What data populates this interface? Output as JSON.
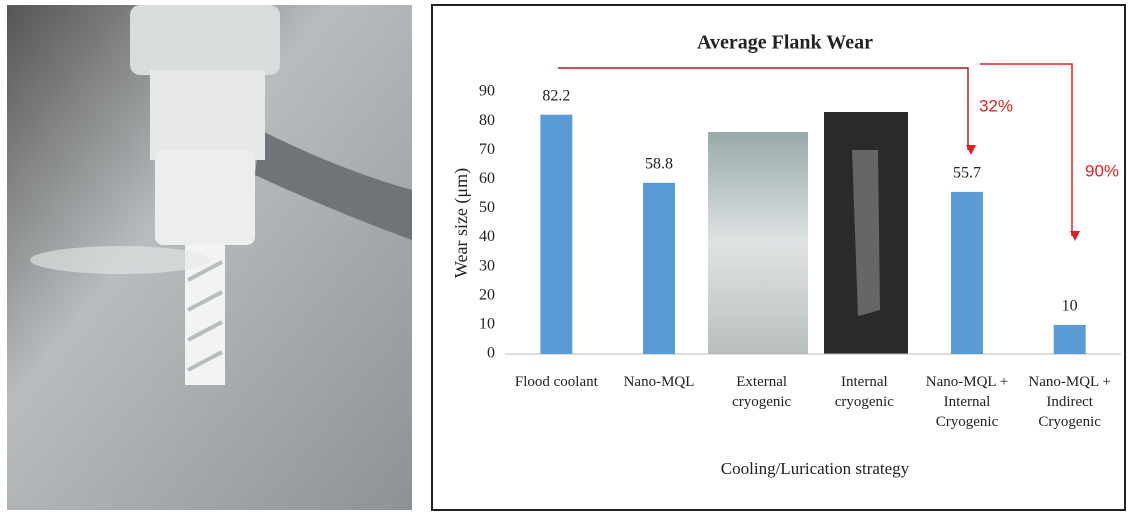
{
  "chart_data": {
    "type": "bar",
    "title": "Average Flank Wear",
    "categories": [
      "Flood coolant",
      "Nano-MQL",
      "External\ncryogenic",
      "Internal\ncryogenic",
      "Nano-MQL +\nInternal\nCryogenic",
      "Nano-MQL +\nIndirect\nCryogenic"
    ],
    "values": [
      82.2,
      58.8,
      null,
      null,
      55.7,
      10
    ],
    "color": "#5b9bd5",
    "y_label": "Wear size (μm)",
    "x_label": "Cooling/Lurication strategy",
    "ylim": [
      0,
      90
    ],
    "yticks": [
      0,
      10,
      20,
      30,
      40,
      50,
      60,
      70,
      80,
      90
    ],
    "grid": false,
    "annotations": [
      "32%",
      "90%"
    ]
  }
}
